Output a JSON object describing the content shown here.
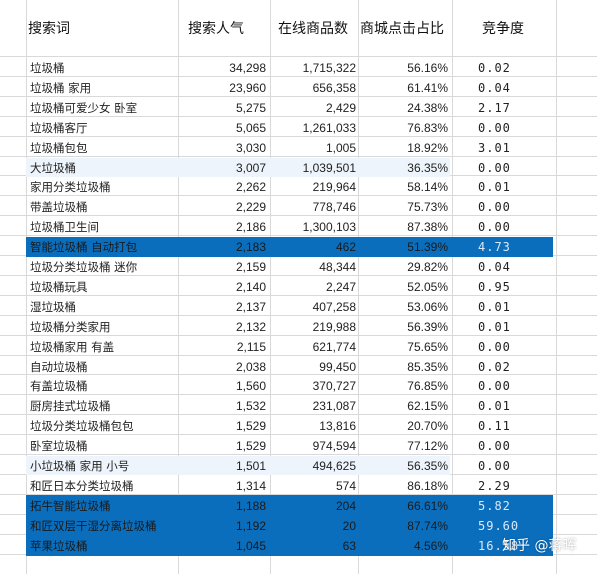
{
  "header": {
    "keyword": "搜索词",
    "popularity": "搜索人气",
    "online_count": "在线商品数",
    "click_share": "商城点击占比",
    "competition": "竞争度"
  },
  "rows": [
    {
      "keyword": "垃圾桶",
      "popularity": "34,298",
      "online_count": "1,715,322",
      "click_share": "56.16%",
      "competition": "0.02",
      "style": "normal"
    },
    {
      "keyword": "垃圾桶 家用",
      "popularity": "23,960",
      "online_count": "656,358",
      "click_share": "61.41%",
      "competition": "0.04",
      "style": "normal"
    },
    {
      "keyword": "垃圾桶可爱少女 卧室",
      "popularity": "5,275",
      "online_count": "2,429",
      "click_share": "24.38%",
      "competition": "2.17",
      "style": "normal"
    },
    {
      "keyword": "垃圾桶客厅",
      "popularity": "5,065",
      "online_count": "1,261,033",
      "click_share": "76.83%",
      "competition": "0.00",
      "style": "normal"
    },
    {
      "keyword": "垃圾桶包包",
      "popularity": "3,030",
      "online_count": "1,005",
      "click_share": "18.92%",
      "competition": "3.01",
      "style": "normal"
    },
    {
      "keyword": "大垃圾桶",
      "popularity": "3,007",
      "online_count": "1,039,501",
      "click_share": "36.35%",
      "competition": "0.00",
      "style": "light"
    },
    {
      "keyword": "家用分类垃圾桶",
      "popularity": "2,262",
      "online_count": "219,964",
      "click_share": "58.14%",
      "competition": "0.01",
      "style": "normal"
    },
    {
      "keyword": "带盖垃圾桶",
      "popularity": "2,229",
      "online_count": "778,746",
      "click_share": "75.73%",
      "competition": "0.00",
      "style": "normal"
    },
    {
      "keyword": "垃圾桶卫生间",
      "popularity": "2,186",
      "online_count": "1,300,103",
      "click_share": "87.38%",
      "competition": "0.00",
      "style": "normal"
    },
    {
      "keyword": "智能垃圾桶 自动打包",
      "popularity": "2,183",
      "online_count": "462",
      "click_share": "51.39%",
      "competition": "4.73",
      "style": "highlight"
    },
    {
      "keyword": "垃圾分类垃圾桶 迷你",
      "popularity": "2,159",
      "online_count": "48,344",
      "click_share": "29.82%",
      "competition": "0.04",
      "style": "normal"
    },
    {
      "keyword": "垃圾桶玩具",
      "popularity": "2,140",
      "online_count": "2,247",
      "click_share": "52.05%",
      "competition": "0.95",
      "style": "normal"
    },
    {
      "keyword": "湿垃圾桶",
      "popularity": "2,137",
      "online_count": "407,258",
      "click_share": "53.06%",
      "competition": "0.01",
      "style": "normal"
    },
    {
      "keyword": "垃圾桶分类家用",
      "popularity": "2,132",
      "online_count": "219,988",
      "click_share": "56.39%",
      "competition": "0.01",
      "style": "normal"
    },
    {
      "keyword": "垃圾桶家用 有盖",
      "popularity": "2,115",
      "online_count": "621,774",
      "click_share": "75.65%",
      "competition": "0.00",
      "style": "normal"
    },
    {
      "keyword": "自动垃圾桶",
      "popularity": "2,038",
      "online_count": "99,450",
      "click_share": "85.35%",
      "competition": "0.02",
      "style": "normal"
    },
    {
      "keyword": "有盖垃圾桶",
      "popularity": "1,560",
      "online_count": "370,727",
      "click_share": "76.85%",
      "competition": "0.00",
      "style": "normal"
    },
    {
      "keyword": "厨房挂式垃圾桶",
      "popularity": "1,532",
      "online_count": "231,087",
      "click_share": "62.15%",
      "competition": "0.01",
      "style": "normal"
    },
    {
      "keyword": "垃圾分类垃圾桶包包",
      "popularity": "1,529",
      "online_count": "13,816",
      "click_share": "20.70%",
      "competition": "0.11",
      "style": "normal"
    },
    {
      "keyword": "卧室垃圾桶",
      "popularity": "1,529",
      "online_count": "974,594",
      "click_share": "77.12%",
      "competition": "0.00",
      "style": "normal"
    },
    {
      "keyword": "小垃圾桶 家用 小号",
      "popularity": "1,501",
      "online_count": "494,625",
      "click_share": "56.35%",
      "competition": "0.00",
      "style": "light"
    },
    {
      "keyword": "和匠日本分类垃圾桶",
      "popularity": "1,314",
      "online_count": "574",
      "click_share": "86.18%",
      "competition": "2.29",
      "style": "normal"
    },
    {
      "keyword": "拓牛智能垃圾桶",
      "popularity": "1,188",
      "online_count": "204",
      "click_share": "66.61%",
      "competition": "5.82",
      "style": "highlight"
    },
    {
      "keyword": "和匠双层干湿分离垃圾桶",
      "popularity": "1,192",
      "online_count": "20",
      "click_share": "87.74%",
      "competition": "59.60",
      "style": "highlight"
    },
    {
      "keyword": "苹果垃圾桶",
      "popularity": "1,045",
      "online_count": "63",
      "click_share": "4.56%",
      "competition": "16.58",
      "style": "highlight"
    }
  ],
  "watermark": "知乎 @蒋晖",
  "colors": {
    "highlight_fill": "#0a6ebd",
    "light_fill": "#eef4fb",
    "grid": "#d9d9d9"
  }
}
